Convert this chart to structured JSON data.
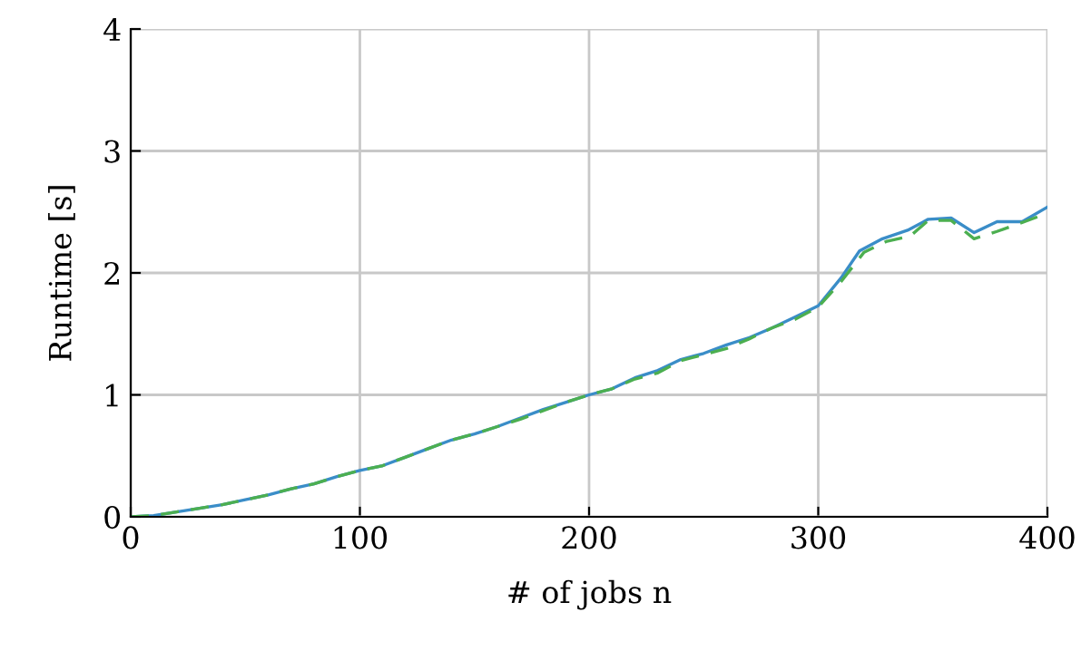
{
  "chart_data": {
    "type": "line",
    "xlabel": "# of jobs n",
    "ylabel": "Runtime [s]",
    "xlim": [
      0,
      400
    ],
    "ylim": [
      0,
      4
    ],
    "xticks": [
      0,
      100,
      200,
      300,
      400
    ],
    "yticks": [
      0,
      1,
      2,
      3,
      4
    ],
    "grid": true,
    "marker": "none",
    "series": [
      {
        "color": "#3a8dc8",
        "line_style": "solid",
        "x": [
          0,
          10,
          20,
          30,
          40,
          50,
          60,
          70,
          80,
          90,
          100,
          110,
          120,
          130,
          140,
          150,
          160,
          170,
          180,
          190,
          200,
          210,
          220,
          230,
          240,
          250,
          260,
          270,
          280,
          290,
          300,
          310,
          318,
          328,
          339,
          348,
          358,
          368,
          378,
          389,
          400
        ],
        "values": [
          0,
          0.01,
          0.04,
          0.07,
          0.1,
          0.14,
          0.18,
          0.23,
          0.27,
          0.33,
          0.38,
          0.42,
          0.49,
          0.56,
          0.63,
          0.68,
          0.74,
          0.81,
          0.88,
          0.94,
          1.0,
          1.05,
          1.14,
          1.2,
          1.29,
          1.34,
          1.41,
          1.47,
          1.55,
          1.64,
          1.73,
          1.96,
          2.18,
          2.28,
          2.35,
          2.44,
          2.45,
          2.33,
          2.42,
          2.42,
          2.54
        ]
      },
      {
        "color": "#4caf50",
        "line_style": "dashed",
        "x": [
          0,
          10,
          20,
          30,
          40,
          50,
          60,
          70,
          80,
          90,
          100,
          110,
          120,
          130,
          140,
          150,
          160,
          170,
          180,
          190,
          200,
          210,
          220,
          230,
          240,
          250,
          260,
          270,
          280,
          290,
          300,
          310,
          320,
          330,
          340,
          348,
          358,
          368,
          378,
          390,
          400
        ],
        "values": [
          0,
          0.01,
          0.04,
          0.07,
          0.1,
          0.14,
          0.18,
          0.23,
          0.27,
          0.33,
          0.38,
          0.42,
          0.49,
          0.56,
          0.63,
          0.68,
          0.74,
          0.8,
          0.87,
          0.94,
          1.0,
          1.05,
          1.13,
          1.18,
          1.28,
          1.33,
          1.38,
          1.46,
          1.55,
          1.62,
          1.72,
          1.93,
          2.17,
          2.26,
          2.3,
          2.43,
          2.43,
          2.28,
          2.34,
          2.42,
          2.49
        ]
      }
    ]
  }
}
